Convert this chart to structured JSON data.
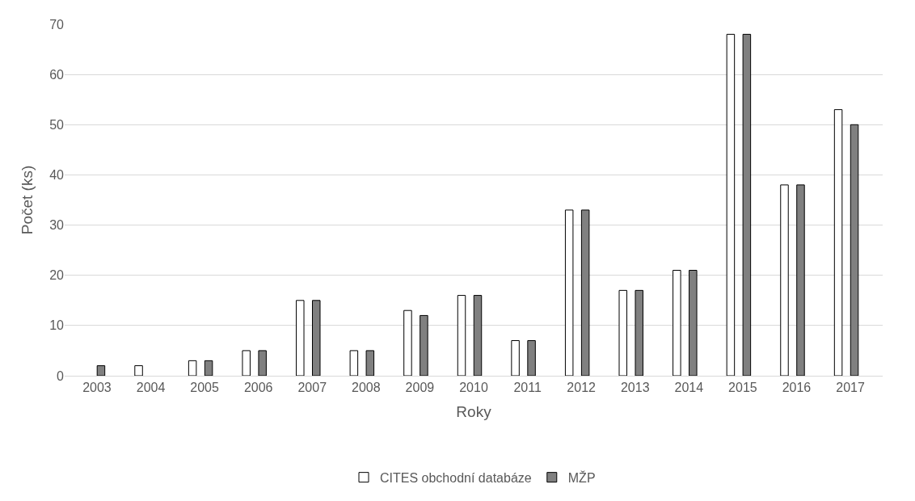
{
  "chart_data": {
    "type": "bar",
    "xlabel": "Roky",
    "ylabel": "Počet (ks)",
    "categories": [
      "2003",
      "2004",
      "2005",
      "2006",
      "2007",
      "2008",
      "2009",
      "2010",
      "2011",
      "2012",
      "2013",
      "2014",
      "2015",
      "2016",
      "2017"
    ],
    "series": [
      {
        "name": "CITES obchodní databáze",
        "color": "#ffffff",
        "values": [
          0,
          2,
          3,
          5,
          15,
          5,
          13,
          16,
          7,
          33,
          17,
          21,
          68,
          38,
          53
        ]
      },
      {
        "name": "MŽP",
        "color": "#808080",
        "values": [
          2,
          0,
          3,
          5,
          15,
          5,
          12,
          16,
          7,
          33,
          17,
          21,
          68,
          38,
          50
        ]
      }
    ],
    "ylim": [
      0,
      70
    ],
    "yticks": [
      0,
      10,
      20,
      30,
      40,
      50,
      60,
      70
    ],
    "grid": "y",
    "legend": "bottom"
  }
}
